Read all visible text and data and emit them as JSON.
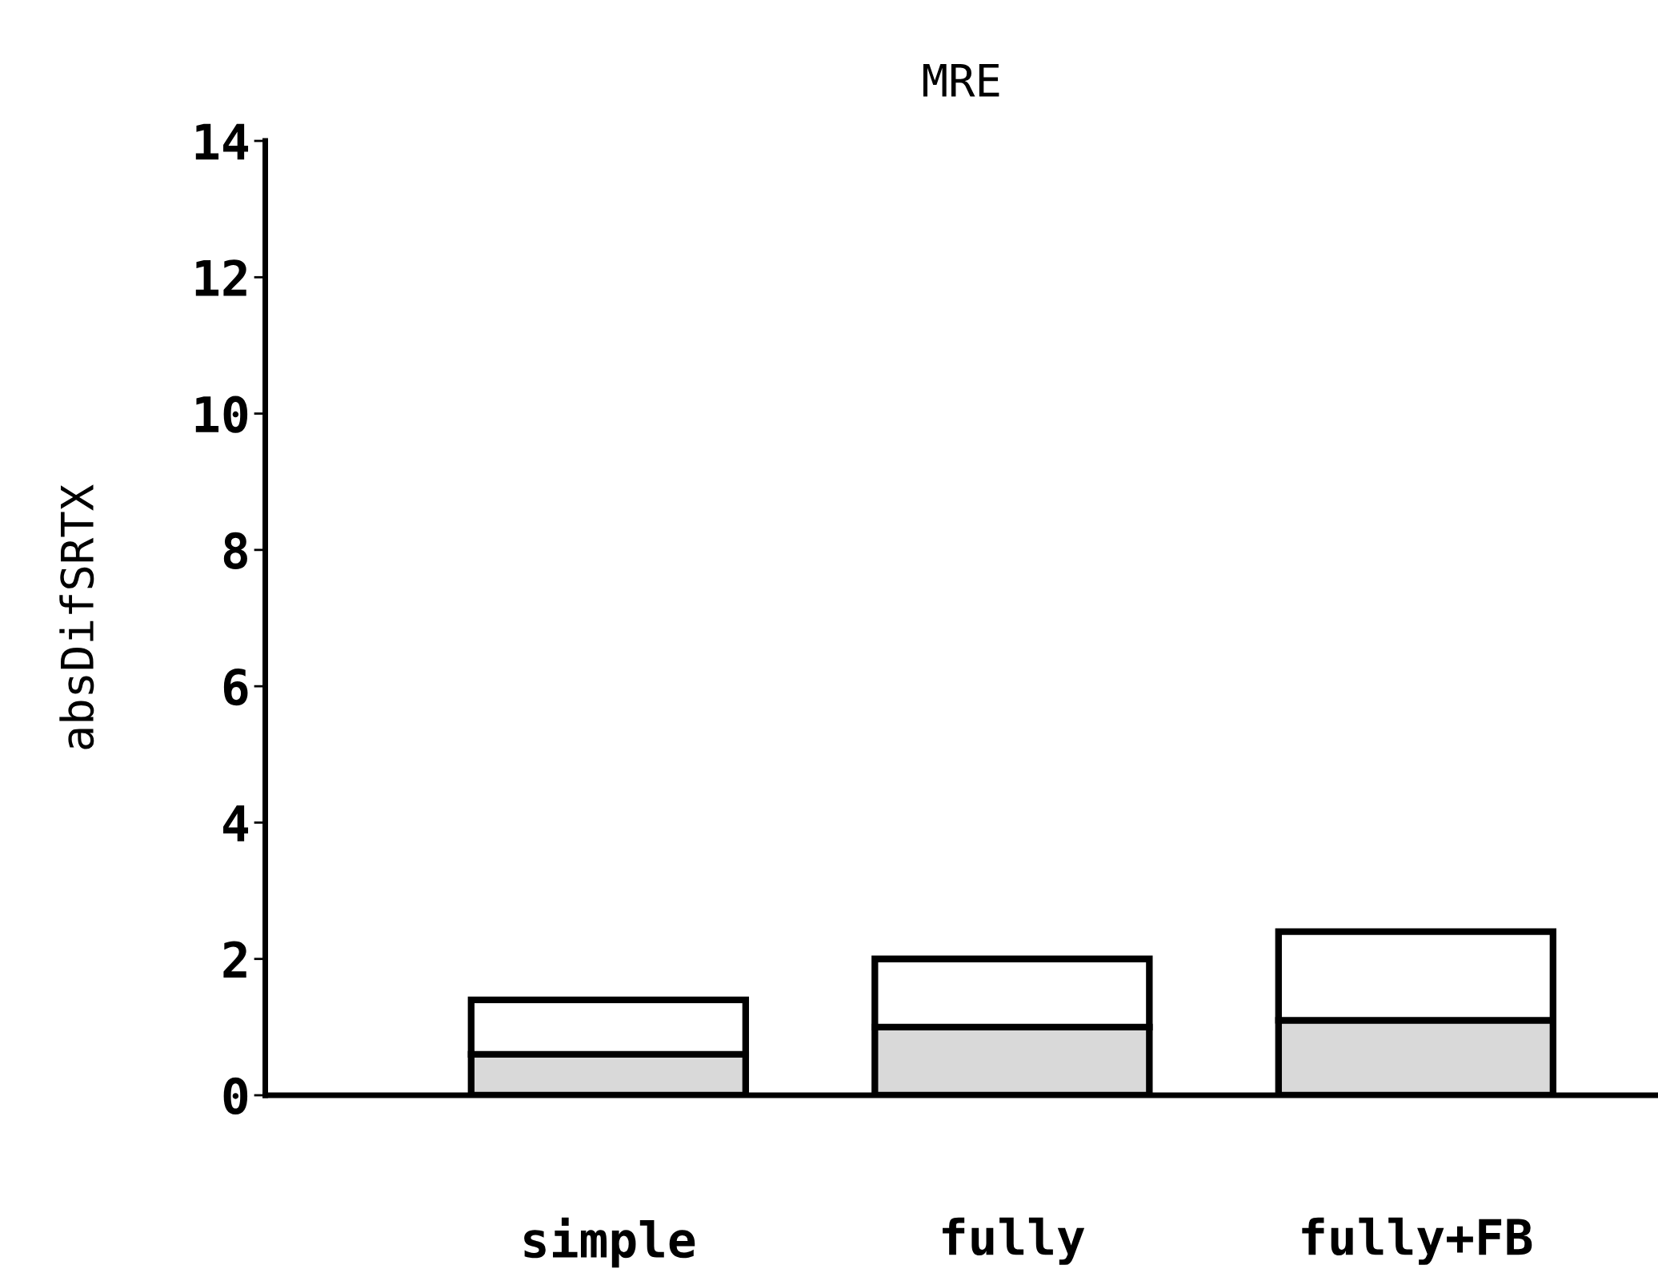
{
  "chart_data": {
    "type": "bar",
    "title": "MRE",
    "ylabel": "absDifSRTX",
    "stacked": true,
    "categories": [
      "simple",
      "fully",
      "fully+FB"
    ],
    "series": [
      {
        "color": "#d9d9d9",
        "values": [
          0.6,
          1.0,
          1.1
        ]
      },
      {
        "color": "#ffffff",
        "values": [
          0.8,
          1.0,
          1.3
        ]
      }
    ],
    "ylim": [
      0,
      14
    ],
    "yticks": [
      0,
      2,
      4,
      6,
      8,
      10,
      12,
      14
    ],
    "grid": false,
    "legend": false
  }
}
